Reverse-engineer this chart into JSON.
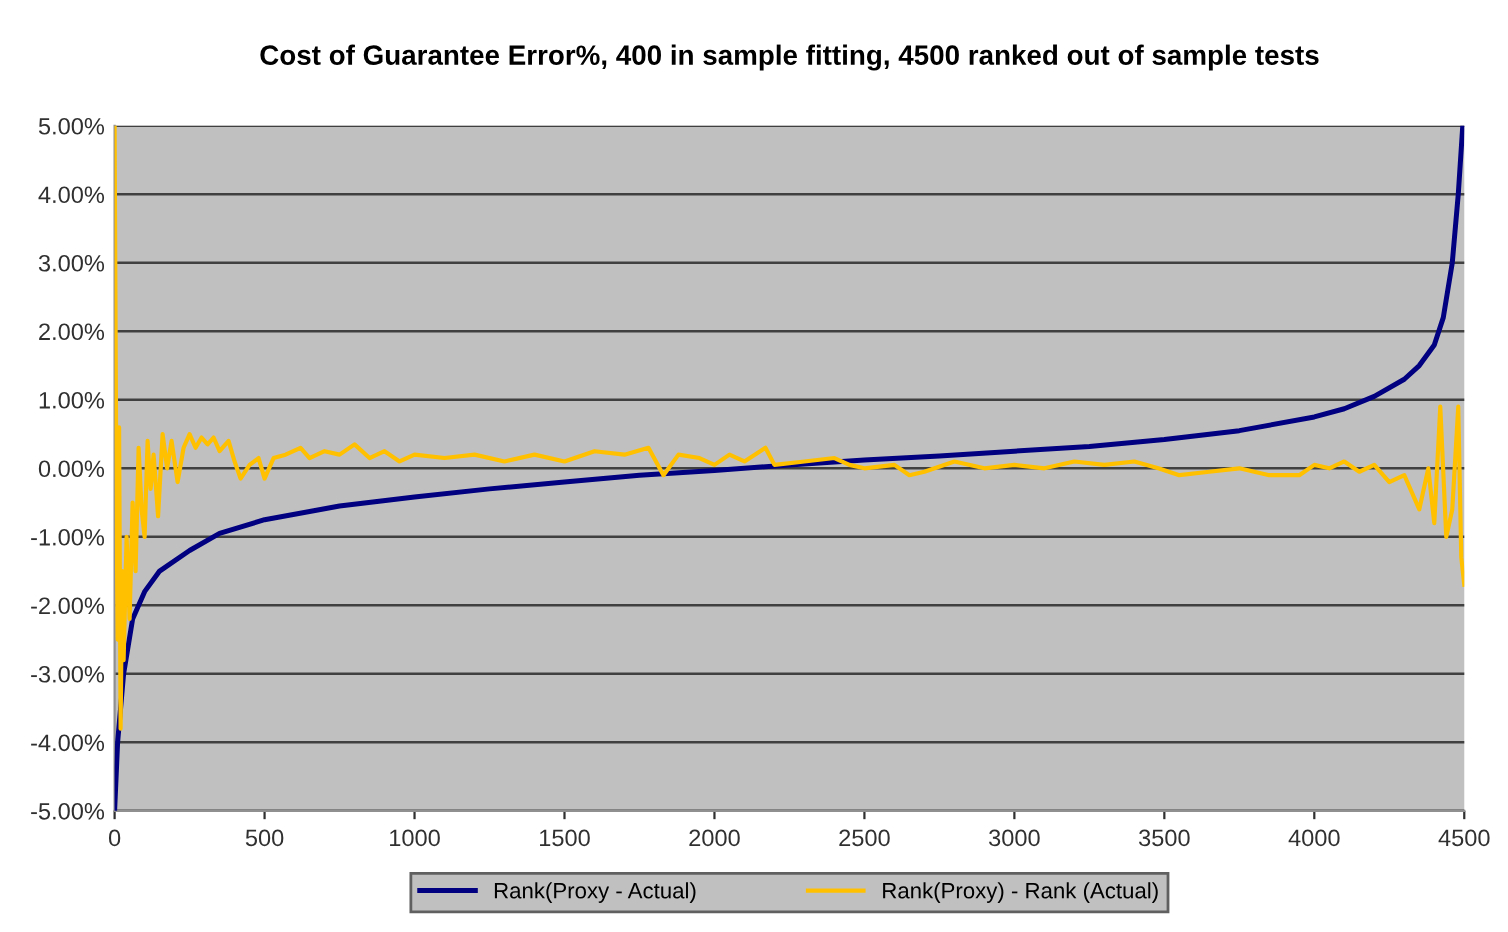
{
  "chart_data": {
    "type": "line",
    "title": "Cost of Guarantee Error%, 400 in sample fitting, 4500 ranked out of sample tests",
    "xlim": [
      0,
      4500
    ],
    "xticks": [
      0,
      500,
      1000,
      1500,
      2000,
      2500,
      3000,
      3500,
      4000,
      4500
    ],
    "ylim": [
      -5,
      5
    ],
    "yticks": [
      {
        "value": -5,
        "label": "-5.00%"
      },
      {
        "value": -4,
        "label": "-4.00%"
      },
      {
        "value": -3,
        "label": "-3.00%"
      },
      {
        "value": -2,
        "label": "-2.00%"
      },
      {
        "value": -1,
        "label": "-1.00%"
      },
      {
        "value": 0,
        "label": "0.00%"
      },
      {
        "value": 1,
        "label": "1.00%"
      },
      {
        "value": 2,
        "label": "2.00%"
      },
      {
        "value": 3,
        "label": "3.00%"
      },
      {
        "value": 4,
        "label": "4.00%"
      },
      {
        "value": 5,
        "label": "5.00%"
      }
    ],
    "grid": "y",
    "legend": "bottom",
    "marker": "none",
    "line_style": "solid",
    "series": [
      {
        "name": "Rank(Proxy - Actual)",
        "color": "#000080",
        "x": [
          0,
          10,
          30,
          60,
          100,
          150,
          250,
          350,
          500,
          750,
          1000,
          1250,
          1500,
          1750,
          2000,
          2250,
          2500,
          2750,
          3000,
          3250,
          3500,
          3750,
          4000,
          4100,
          4200,
          4300,
          4350,
          4400,
          4430,
          4460,
          4480,
          4495
        ],
        "values": [
          -5,
          -4,
          -3,
          -2.2,
          -1.8,
          -1.5,
          -1.2,
          -0.95,
          -0.75,
          -0.55,
          -0.42,
          -0.3,
          -0.2,
          -0.1,
          -0.03,
          0.05,
          0.12,
          0.18,
          0.25,
          0.32,
          0.42,
          0.55,
          0.75,
          0.87,
          1.05,
          1.3,
          1.5,
          1.8,
          2.2,
          3,
          4,
          5
        ]
      },
      {
        "name": "Rank(Proxy) - Rank (Actual)",
        "color": "#ffc000",
        "x": [
          0,
          5,
          10,
          15,
          20,
          25,
          30,
          40,
          50,
          60,
          70,
          80,
          90,
          100,
          110,
          120,
          130,
          145,
          160,
          175,
          190,
          210,
          230,
          250,
          270,
          290,
          310,
          330,
          350,
          380,
          400,
          420,
          450,
          480,
          500,
          530,
          570,
          620,
          650,
          700,
          750,
          800,
          850,
          900,
          950,
          1000,
          1100,
          1200,
          1300,
          1400,
          1500,
          1600,
          1700,
          1780,
          1830,
          1880,
          1950,
          2000,
          2050,
          2100,
          2170,
          2200,
          2300,
          2400,
          2450,
          2500,
          2600,
          2650,
          2700,
          2800,
          2900,
          3000,
          3100,
          3200,
          3300,
          3400,
          3480,
          3550,
          3650,
          3750,
          3850,
          3950,
          4000,
          4050,
          4100,
          4150,
          4200,
          4250,
          4300,
          4350,
          4380,
          4400,
          4420,
          4440,
          4460,
          4480,
          4490,
          4500
        ],
        "values": [
          5,
          0.5,
          -2.5,
          0.6,
          -3.8,
          -1.5,
          -2.8,
          -1,
          -2.2,
          -0.5,
          -1.5,
          0.3,
          -0.6,
          -1,
          0.4,
          -0.3,
          0.2,
          -0.7,
          0.5,
          0,
          0.4,
          -0.2,
          0.3,
          0.5,
          0.3,
          0.45,
          0.35,
          0.45,
          0.25,
          0.4,
          0.1,
          -0.15,
          0.05,
          0.15,
          -0.15,
          0.15,
          0.2,
          0.3,
          0.15,
          0.25,
          0.2,
          0.35,
          0.15,
          0.25,
          0.1,
          0.2,
          0.15,
          0.2,
          0.1,
          0.2,
          0.1,
          0.25,
          0.2,
          0.3,
          -0.1,
          0.2,
          0.15,
          0.05,
          0.2,
          0.1,
          0.3,
          0.05,
          0.1,
          0.15,
          0.05,
          0,
          0.05,
          -0.1,
          -0.05,
          0.1,
          0,
          0.05,
          0,
          0.1,
          0.05,
          0.1,
          0,
          -0.1,
          -0.05,
          0,
          -0.1,
          -0.1,
          0.05,
          0,
          0.1,
          -0.05,
          0.05,
          -0.2,
          -0.1,
          -0.6,
          0,
          -0.8,
          0.9,
          -1,
          -0.6,
          0.9,
          -1.3,
          -1.7
        ]
      }
    ]
  }
}
